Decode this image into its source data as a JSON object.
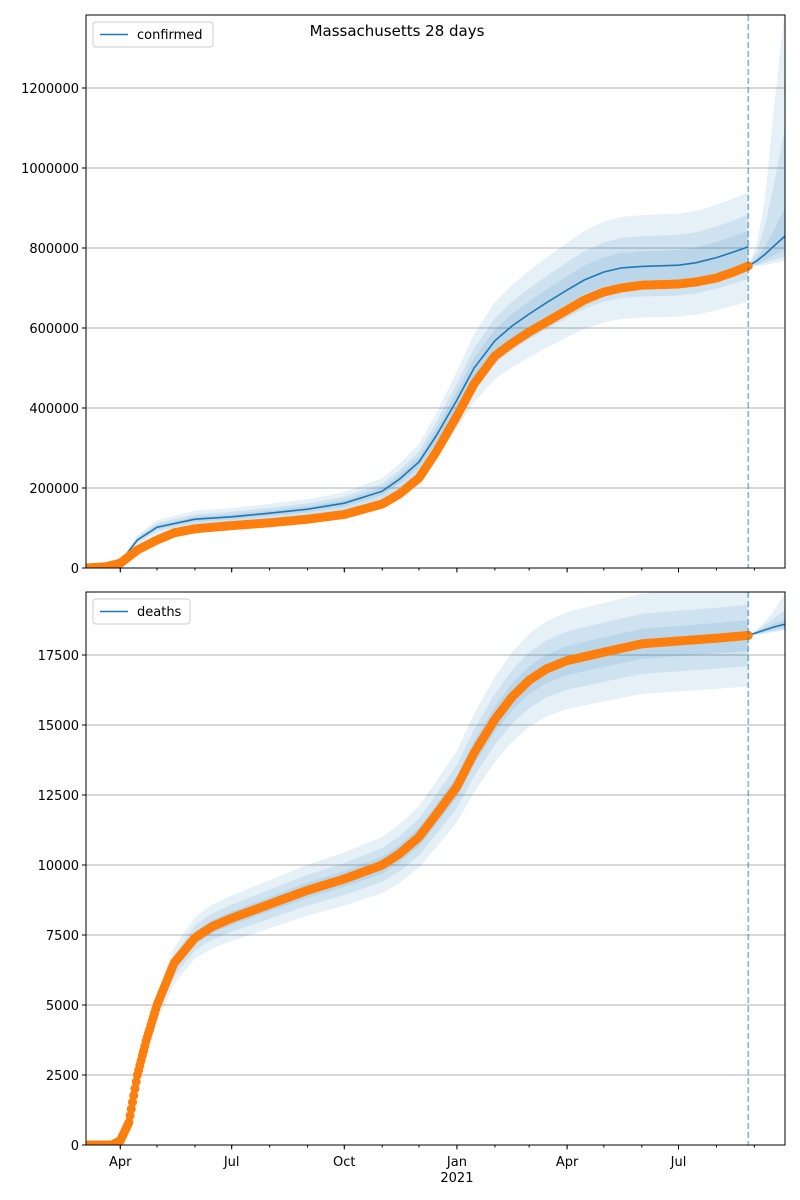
{
  "title": "Massachusetts 28 days",
  "colors": {
    "model": "#1f77b4",
    "observed": "#ff7f0e",
    "grid": "#b0b0b0"
  },
  "chart_data": [
    {
      "type": "line",
      "legend": "confirmed",
      "legend_placement": "top-left",
      "xlim": [
        "2020-03-04",
        "2021-09-26"
      ],
      "ylim": [
        0,
        1382500
      ],
      "yticks": [
        0,
        200000,
        400000,
        600000,
        800000,
        1000000,
        1200000
      ],
      "ytick_labels": [
        "0",
        "200000",
        "400000",
        "600000",
        "800000",
        "1000000",
        "1200000"
      ],
      "grid": "y",
      "forecast_start": "2021-08-27",
      "observed": {
        "dates": [
          "2020-03-04",
          "2020-03-20",
          "2020-04-01",
          "2020-04-15",
          "2020-05-01",
          "2020-05-15",
          "2020-06-01",
          "2020-07-01",
          "2020-08-01",
          "2020-09-01",
          "2020-10-01",
          "2020-11-01",
          "2020-11-15",
          "2020-12-01",
          "2020-12-15",
          "2021-01-01",
          "2021-01-15",
          "2021-02-01",
          "2021-02-15",
          "2021-03-01",
          "2021-03-15",
          "2021-04-01",
          "2021-04-15",
          "2021-05-01",
          "2021-05-15",
          "2021-06-01",
          "2021-07-01",
          "2021-07-15",
          "2021-08-01",
          "2021-08-15",
          "2021-08-27"
        ],
        "values": [
          0,
          3000,
          12000,
          45000,
          70000,
          88000,
          98000,
          106000,
          113000,
          122000,
          134000,
          160000,
          185000,
          225000,
          290000,
          380000,
          460000,
          530000,
          562000,
          590000,
          615000,
          645000,
          670000,
          690000,
          700000,
          707000,
          710000,
          715000,
          725000,
          740000,
          755000
        ]
      },
      "model": {
        "dates": [
          "2020-03-04",
          "2020-03-20",
          "2020-04-01",
          "2020-04-15",
          "2020-05-01",
          "2020-06-01",
          "2020-07-01",
          "2020-08-01",
          "2020-09-01",
          "2020-10-01",
          "2020-11-01",
          "2020-11-15",
          "2020-12-01",
          "2020-12-15",
          "2021-01-01",
          "2021-01-15",
          "2021-02-01",
          "2021-02-15",
          "2021-03-01",
          "2021-03-15",
          "2021-04-01",
          "2021-04-15",
          "2021-05-01",
          "2021-05-15",
          "2021-06-01",
          "2021-07-01",
          "2021-07-15",
          "2021-08-01",
          "2021-08-15",
          "2021-08-27"
        ],
        "values": [
          0,
          4000,
          15000,
          70000,
          102000,
          122000,
          128000,
          137000,
          147000,
          162000,
          192000,
          222000,
          265000,
          330000,
          420000,
          500000,
          568000,
          605000,
          635000,
          663000,
          695000,
          720000,
          740000,
          750000,
          754000,
          757000,
          763000,
          776000,
          790000,
          803000
        ],
        "band_halfwidth_fractions": [
          0.05,
          0.1,
          0.17
        ]
      },
      "forecast": {
        "dates": [
          "2021-08-27",
          "2021-09-03",
          "2021-09-10",
          "2021-09-17",
          "2021-09-26"
        ],
        "median": [
          755000,
          768000,
          785000,
          805000,
          830000
        ],
        "bands": [
          {
            "lower": [
              755000,
              760000,
              770000,
              782000,
              795000
            ],
            "upper": [
              755000,
              775000,
              805000,
              845000,
              900000
            ]
          },
          {
            "lower": [
              755000,
              757000,
              763000,
              770000,
              778000
            ],
            "upper": [
              755000,
              790000,
              860000,
              960000,
              1100000
            ]
          },
          {
            "lower": [
              755000,
              754000,
              757000,
              762000,
              768000
            ],
            "upper": [
              755000,
              810000,
              930000,
              1150000,
              1400000
            ]
          }
        ]
      }
    },
    {
      "type": "line",
      "legend": "deaths",
      "legend_placement": "top-left",
      "xlim": [
        "2020-03-04",
        "2021-09-26"
      ],
      "ylim": [
        0,
        19750
      ],
      "yticks": [
        0,
        2500,
        5000,
        7500,
        10000,
        12500,
        15000,
        17500
      ],
      "ytick_labels": [
        "0",
        "2500",
        "5000",
        "7500",
        "10000",
        "12500",
        "15000",
        "17500"
      ],
      "grid": "y",
      "forecast_start": "2021-08-27",
      "observed": {
        "dates": [
          "2020-03-04",
          "2020-03-25",
          "2020-04-01",
          "2020-04-08",
          "2020-04-15",
          "2020-04-22",
          "2020-05-01",
          "2020-05-15",
          "2020-06-01",
          "2020-06-15",
          "2020-07-01",
          "2020-08-01",
          "2020-09-01",
          "2020-10-01",
          "2020-11-01",
          "2020-11-15",
          "2020-12-01",
          "2020-12-15",
          "2021-01-01",
          "2021-01-15",
          "2021-02-01",
          "2021-02-15",
          "2021-03-01",
          "2021-03-15",
          "2021-04-01",
          "2021-05-01",
          "2021-06-01",
          "2021-07-01",
          "2021-08-01",
          "2021-08-27"
        ],
        "values": [
          0,
          0,
          150,
          800,
          2500,
          3700,
          5000,
          6500,
          7400,
          7800,
          8100,
          8600,
          9100,
          9500,
          10000,
          10400,
          11000,
          11800,
          12800,
          14000,
          15200,
          16000,
          16600,
          17000,
          17300,
          17600,
          17900,
          18000,
          18100,
          18200
        ]
      },
      "model": {
        "dates": [
          "2020-03-04",
          "2020-03-25",
          "2020-04-01",
          "2020-04-08",
          "2020-04-15",
          "2020-04-22",
          "2020-05-01",
          "2020-05-15",
          "2020-06-01",
          "2020-06-15",
          "2020-07-01",
          "2020-08-01",
          "2020-09-01",
          "2020-10-01",
          "2020-11-01",
          "2020-11-15",
          "2020-12-01",
          "2020-12-15",
          "2021-01-01",
          "2021-01-15",
          "2021-02-01",
          "2021-02-15",
          "2021-03-01",
          "2021-03-15",
          "2021-04-01",
          "2021-05-01",
          "2021-06-01",
          "2021-07-01",
          "2021-08-01",
          "2021-08-27"
        ],
        "values": [
          0,
          0,
          150,
          800,
          2400,
          3600,
          4900,
          6400,
          7400,
          7800,
          8100,
          8600,
          9100,
          9500,
          10000,
          10400,
          11000,
          11800,
          12800,
          14000,
          15200,
          16000,
          16600,
          17000,
          17300,
          17600,
          17900,
          18000,
          18100,
          18200
        ],
        "band_halfwidth_fractions": [
          0.03,
          0.06,
          0.1
        ]
      },
      "forecast": {
        "dates": [
          "2021-08-27",
          "2021-09-03",
          "2021-09-10",
          "2021-09-17",
          "2021-09-26"
        ],
        "median": [
          18200,
          18300,
          18400,
          18500,
          18600
        ],
        "bands": [
          {
            "lower": [
              18200,
              18260,
              18330,
              18400,
              18470
            ],
            "upper": [
              18200,
              18340,
              18480,
              18620,
              18780
            ]
          },
          {
            "lower": [
              18200,
              18240,
              18300,
              18360,
              18420
            ],
            "upper": [
              18200,
              18380,
              18580,
              18820,
              19100
            ]
          },
          {
            "lower": [
              18200,
              18220,
              18270,
              18320,
              18370
            ],
            "upper": [
              18200,
              18420,
              18700,
              19100,
              19700
            ]
          }
        ]
      }
    }
  ],
  "xticks": [
    {
      "date": "2020-04-01",
      "label": "Apr"
    },
    {
      "date": "2020-07-01",
      "label": "Jul"
    },
    {
      "date": "2020-10-01",
      "label": "Oct"
    },
    {
      "date": "2021-01-01",
      "label": "Jan",
      "sublabel": "2021"
    },
    {
      "date": "2021-04-01",
      "label": "Apr"
    },
    {
      "date": "2021-07-01",
      "label": "Jul"
    }
  ]
}
